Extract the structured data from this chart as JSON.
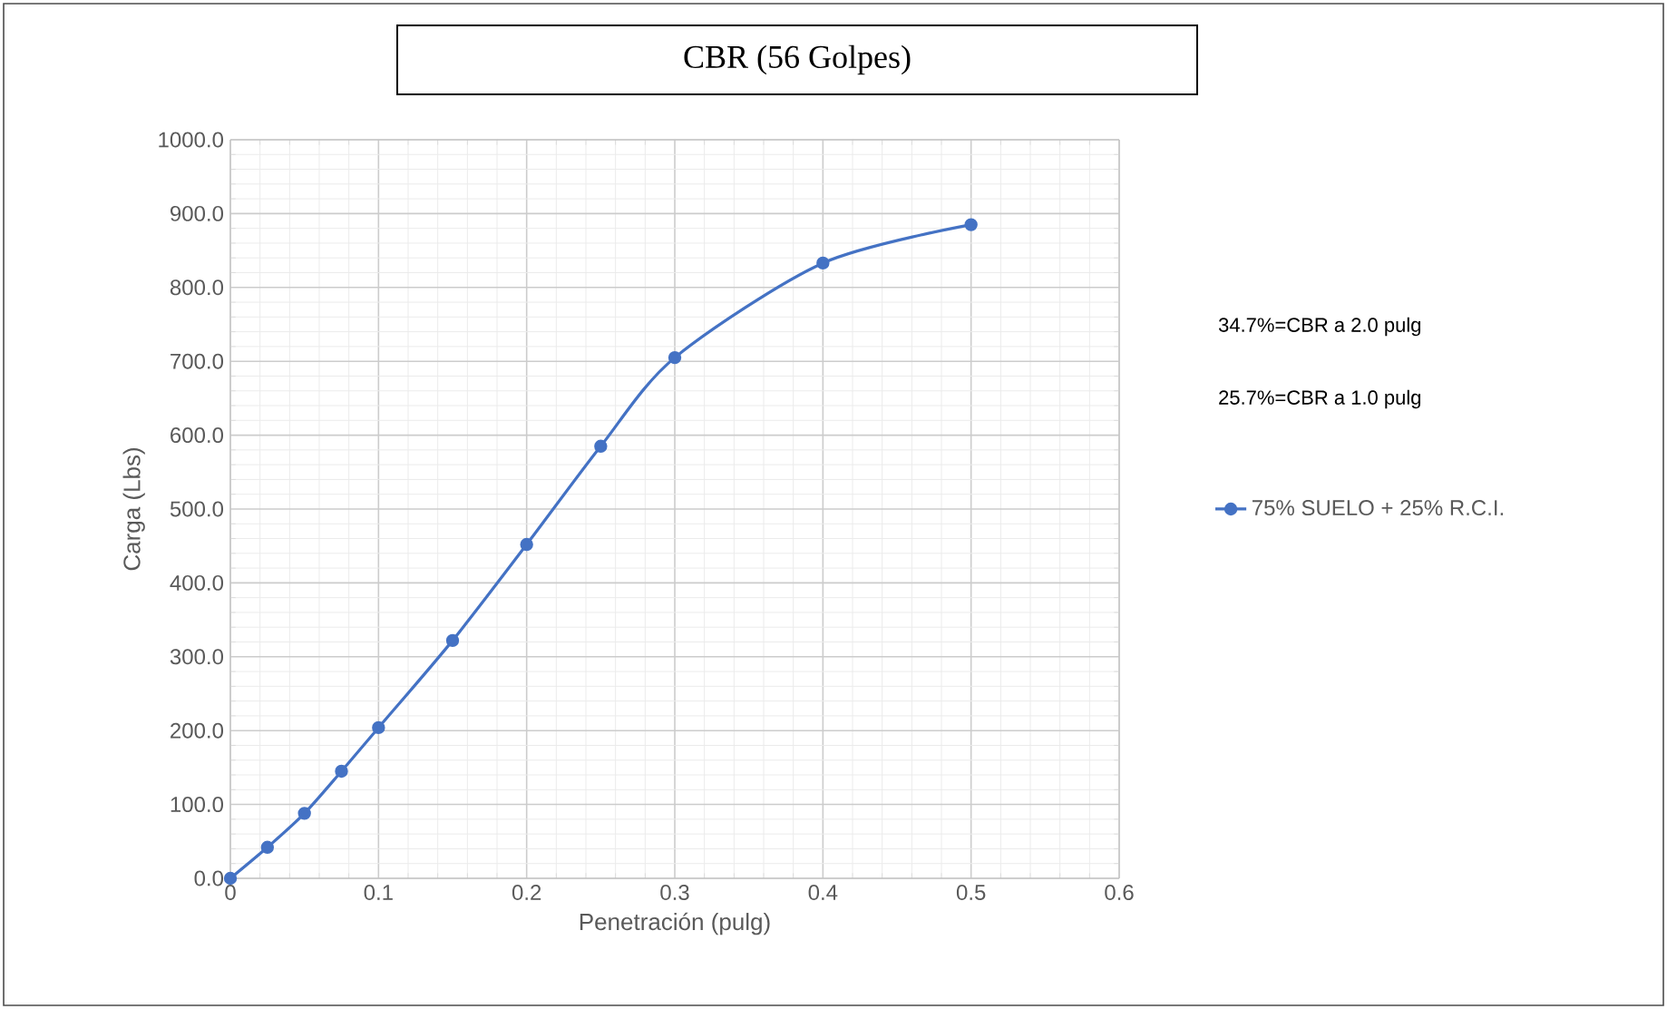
{
  "chart_data": {
    "type": "line",
    "title": "CBR (56 Golpes)",
    "xlabel": "Penetración (pulg)",
    "ylabel": "Carga (Lbs)",
    "x": [
      0,
      0.025,
      0.05,
      0.075,
      0.1,
      0.15,
      0.2,
      0.25,
      0.3,
      0.4,
      0.5
    ],
    "series": [
      {
        "name": "75% SUELO + 25% R.C.I.",
        "color": "#4472c4",
        "values": [
          0,
          42,
          88,
          145,
          204,
          322,
          452,
          585,
          705,
          833,
          885
        ]
      }
    ],
    "xlim": [
      0,
      0.6
    ],
    "xticks": [
      0,
      0.1,
      0.2,
      0.3,
      0.4,
      0.5,
      0.6
    ],
    "ylim": [
      0,
      1000
    ],
    "yticks": [
      {
        "value": 0,
        "label": "0.0"
      },
      {
        "value": 100,
        "label": "100.0"
      },
      {
        "value": 200,
        "label": "200.0"
      },
      {
        "value": 300,
        "label": "300.0"
      },
      {
        "value": 400,
        "label": "400.0"
      },
      {
        "value": 500,
        "label": "500.0"
      },
      {
        "value": 600,
        "label": "600.0"
      },
      {
        "value": 700,
        "label": "700.0"
      },
      {
        "value": 800,
        "label": "800.0"
      },
      {
        "value": 900,
        "label": "900.0"
      },
      {
        "value": 1000,
        "label": "1000.0"
      }
    ],
    "annotations": [
      "34.7%=CBR a 2.0 pulg",
      "25.7%=CBR a 1.0 pulg"
    ],
    "grid": true,
    "legend": "right",
    "marker": "circle",
    "line_style": "solid"
  }
}
